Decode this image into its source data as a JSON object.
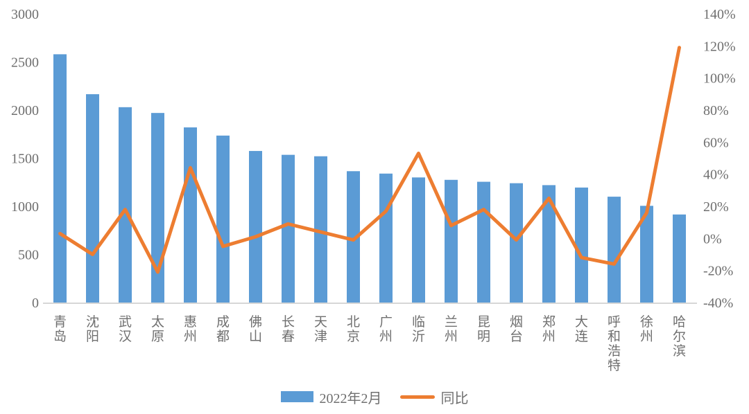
{
  "chart_data": {
    "type": "combo-bar-line",
    "title": "",
    "categories": [
      "青岛",
      "沈阳",
      "武汉",
      "太原",
      "惠州",
      "成都",
      "佛山",
      "长春",
      "天津",
      "北京",
      "广州",
      "临沂",
      "兰州",
      "昆明",
      "烟台",
      "郑州",
      "大连",
      "呼和浩特",
      "徐州",
      "哈尔滨"
    ],
    "series": [
      {
        "name": "2022年2月",
        "type": "bar",
        "axis": "left",
        "color": "#5B9BD5",
        "values": [
          2580,
          2165,
          2030,
          1970,
          1820,
          1735,
          1575,
          1535,
          1520,
          1365,
          1340,
          1300,
          1275,
          1255,
          1240,
          1220,
          1195,
          1100,
          1005,
          915
        ]
      },
      {
        "name": "同比",
        "type": "line",
        "axis": "right",
        "color": "#ED7D31",
        "values_pct": [
          3,
          -10,
          18,
          -21,
          44,
          -5,
          1,
          9,
          4,
          -1,
          17,
          53,
          8,
          18,
          -1,
          25,
          -12,
          -16,
          16,
          119
        ]
      }
    ],
    "left_axis": {
      "min": 0,
      "max": 3000,
      "tick_values": [
        0,
        500,
        1000,
        1500,
        2000,
        2500,
        3000
      ],
      "tick_labels": [
        "0",
        "500",
        "1000",
        "1500",
        "2000",
        "2500",
        "3000"
      ]
    },
    "right_axis": {
      "min": -40,
      "max": 140,
      "tick_values": [
        -40,
        -20,
        0,
        20,
        40,
        60,
        80,
        100,
        120,
        140
      ],
      "tick_labels": [
        "-40%",
        "-20%",
        "0%",
        "20%",
        "40%",
        "60%",
        "80%",
        "100%",
        "120%",
        "140%"
      ]
    },
    "legend": {
      "position": "bottom",
      "items": [
        "2022年2月",
        "同比"
      ]
    },
    "grid": false,
    "colors": {
      "bar": "#5B9BD5",
      "line": "#ED7D31",
      "axis_line": "#D6D6D6",
      "label_text": "#6f6f6f"
    }
  }
}
